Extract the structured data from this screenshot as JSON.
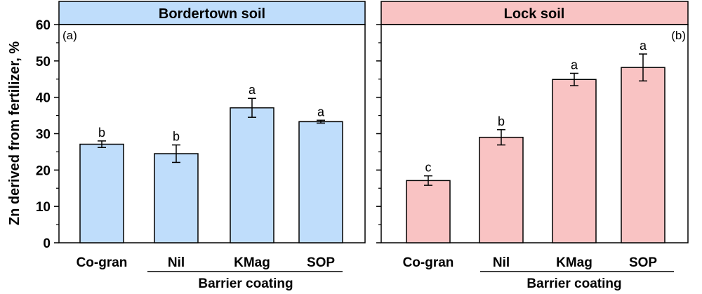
{
  "chart_data": {
    "type": "bar",
    "ylabel": "Zn derived from fertilizer, %",
    "ylim": [
      0,
      60
    ],
    "yticks": [
      0,
      10,
      20,
      30,
      40,
      50,
      60
    ],
    "group_label": "Barrier coating",
    "colors": {
      "Bordertown soil": "#BFDDFB",
      "Lock soil": "#F9C3C3",
      "strip_blue": "#BFDDFB",
      "strip_pink": "#F9C3C3"
    },
    "panels": [
      {
        "strip_title": "Bordertown soil",
        "panel_label": "(a)",
        "categories": [
          "Co-gran",
          "Nil",
          "KMag",
          "SOP"
        ],
        "values": [
          27.1,
          24.5,
          37.1,
          33.3
        ],
        "errors": [
          0.9,
          2.4,
          2.6,
          0.4
        ],
        "letters": [
          "b",
          "b",
          "a",
          "a"
        ]
      },
      {
        "strip_title": "Lock soil",
        "panel_label": "(b)",
        "categories": [
          "Co-gran",
          "Nil",
          "KMag",
          "SOP"
        ],
        "values": [
          17.1,
          29.0,
          44.9,
          48.2
        ],
        "errors": [
          1.3,
          2.1,
          1.7,
          3.7
        ],
        "letters": [
          "c",
          "b",
          "a",
          "a"
        ]
      }
    ]
  }
}
